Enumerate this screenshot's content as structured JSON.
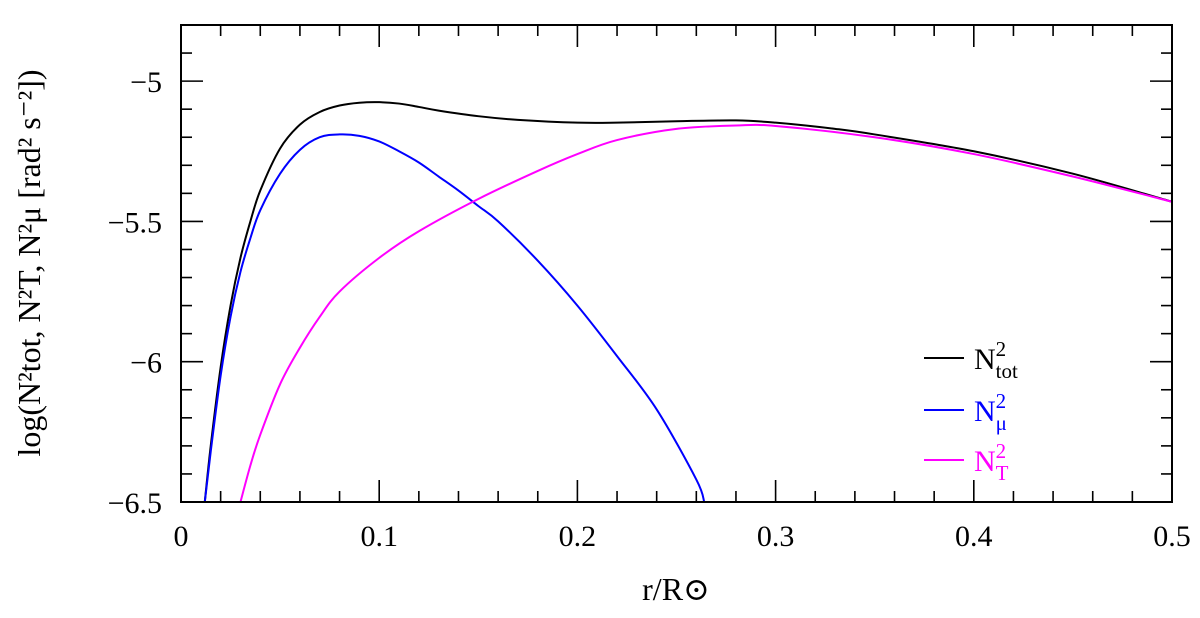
{
  "chart_data": {
    "type": "line",
    "xlabel": "r/R⊙",
    "ylabel": "log(N²tot, N²T, N²μ [rad² s⁻²])",
    "xlim": [
      0,
      0.5
    ],
    "ylim": [
      -6.5,
      -4.8
    ],
    "xticks": [
      {
        "value": 0,
        "label": "0"
      },
      {
        "value": 0.1,
        "label": "0.1"
      },
      {
        "value": 0.2,
        "label": "0.2"
      },
      {
        "value": 0.3,
        "label": "0.3"
      },
      {
        "value": 0.4,
        "label": "0.4"
      },
      {
        "value": 0.5,
        "label": "0.5"
      }
    ],
    "yticks": [
      {
        "value": -5,
        "label": "−5"
      },
      {
        "value": -5.5,
        "label": "−5.5"
      },
      {
        "value": -6,
        "label": "−6"
      },
      {
        "value": -6.5,
        "label": "−6.5"
      }
    ],
    "x_minor_step": 0.02,
    "y_minor_step": 0.1,
    "legend_position": "lower-right",
    "series": [
      {
        "name": "N²tot",
        "base": "N",
        "sup": "2",
        "sub": "tot",
        "color": "#000000",
        "x": [
          0.012,
          0.015,
          0.02,
          0.025,
          0.03,
          0.035,
          0.04,
          0.05,
          0.06,
          0.07,
          0.08,
          0.09,
          0.1,
          0.11,
          0.12,
          0.13,
          0.15,
          0.17,
          0.2,
          0.22,
          0.25,
          0.28,
          0.3,
          0.33,
          0.35,
          0.4,
          0.45,
          0.5
        ],
        "y": [
          -6.5,
          -6.3,
          -6.02,
          -5.8,
          -5.63,
          -5.5,
          -5.39,
          -5.24,
          -5.155,
          -5.11,
          -5.087,
          -5.077,
          -5.075,
          -5.08,
          -5.092,
          -5.105,
          -5.125,
          -5.138,
          -5.148,
          -5.148,
          -5.143,
          -5.14,
          -5.148,
          -5.17,
          -5.19,
          -5.25,
          -5.33,
          -5.43
        ]
      },
      {
        "name": "N²μ",
        "base": "N",
        "sup": "2",
        "sub": "μ",
        "color": "#0000ff",
        "x": [
          0.012,
          0.015,
          0.02,
          0.025,
          0.03,
          0.035,
          0.04,
          0.05,
          0.06,
          0.07,
          0.08,
          0.09,
          0.1,
          0.11,
          0.12,
          0.13,
          0.14,
          0.15,
          0.16,
          0.18,
          0.2,
          0.22,
          0.24,
          0.26,
          0.264
        ],
        "y": [
          -6.5,
          -6.32,
          -6.05,
          -5.84,
          -5.68,
          -5.56,
          -5.46,
          -5.33,
          -5.245,
          -5.2,
          -5.19,
          -5.195,
          -5.215,
          -5.25,
          -5.29,
          -5.34,
          -5.39,
          -5.445,
          -5.5,
          -5.64,
          -5.8,
          -5.98,
          -6.17,
          -6.42,
          -6.5
        ]
      },
      {
        "name": "N²T",
        "base": "N",
        "sup": "2",
        "sub": "T",
        "color": "#ff00ff",
        "x": [
          0.03,
          0.035,
          0.04,
          0.05,
          0.06,
          0.07,
          0.08,
          0.1,
          0.12,
          0.15,
          0.18,
          0.2,
          0.22,
          0.25,
          0.28,
          0.3,
          0.35,
          0.4,
          0.45,
          0.5
        ],
        "y": [
          -6.5,
          -6.37,
          -6.26,
          -6.08,
          -5.95,
          -5.84,
          -5.75,
          -5.63,
          -5.535,
          -5.42,
          -5.32,
          -5.26,
          -5.21,
          -5.17,
          -5.158,
          -5.16,
          -5.2,
          -5.26,
          -5.34,
          -5.43
        ]
      }
    ]
  }
}
